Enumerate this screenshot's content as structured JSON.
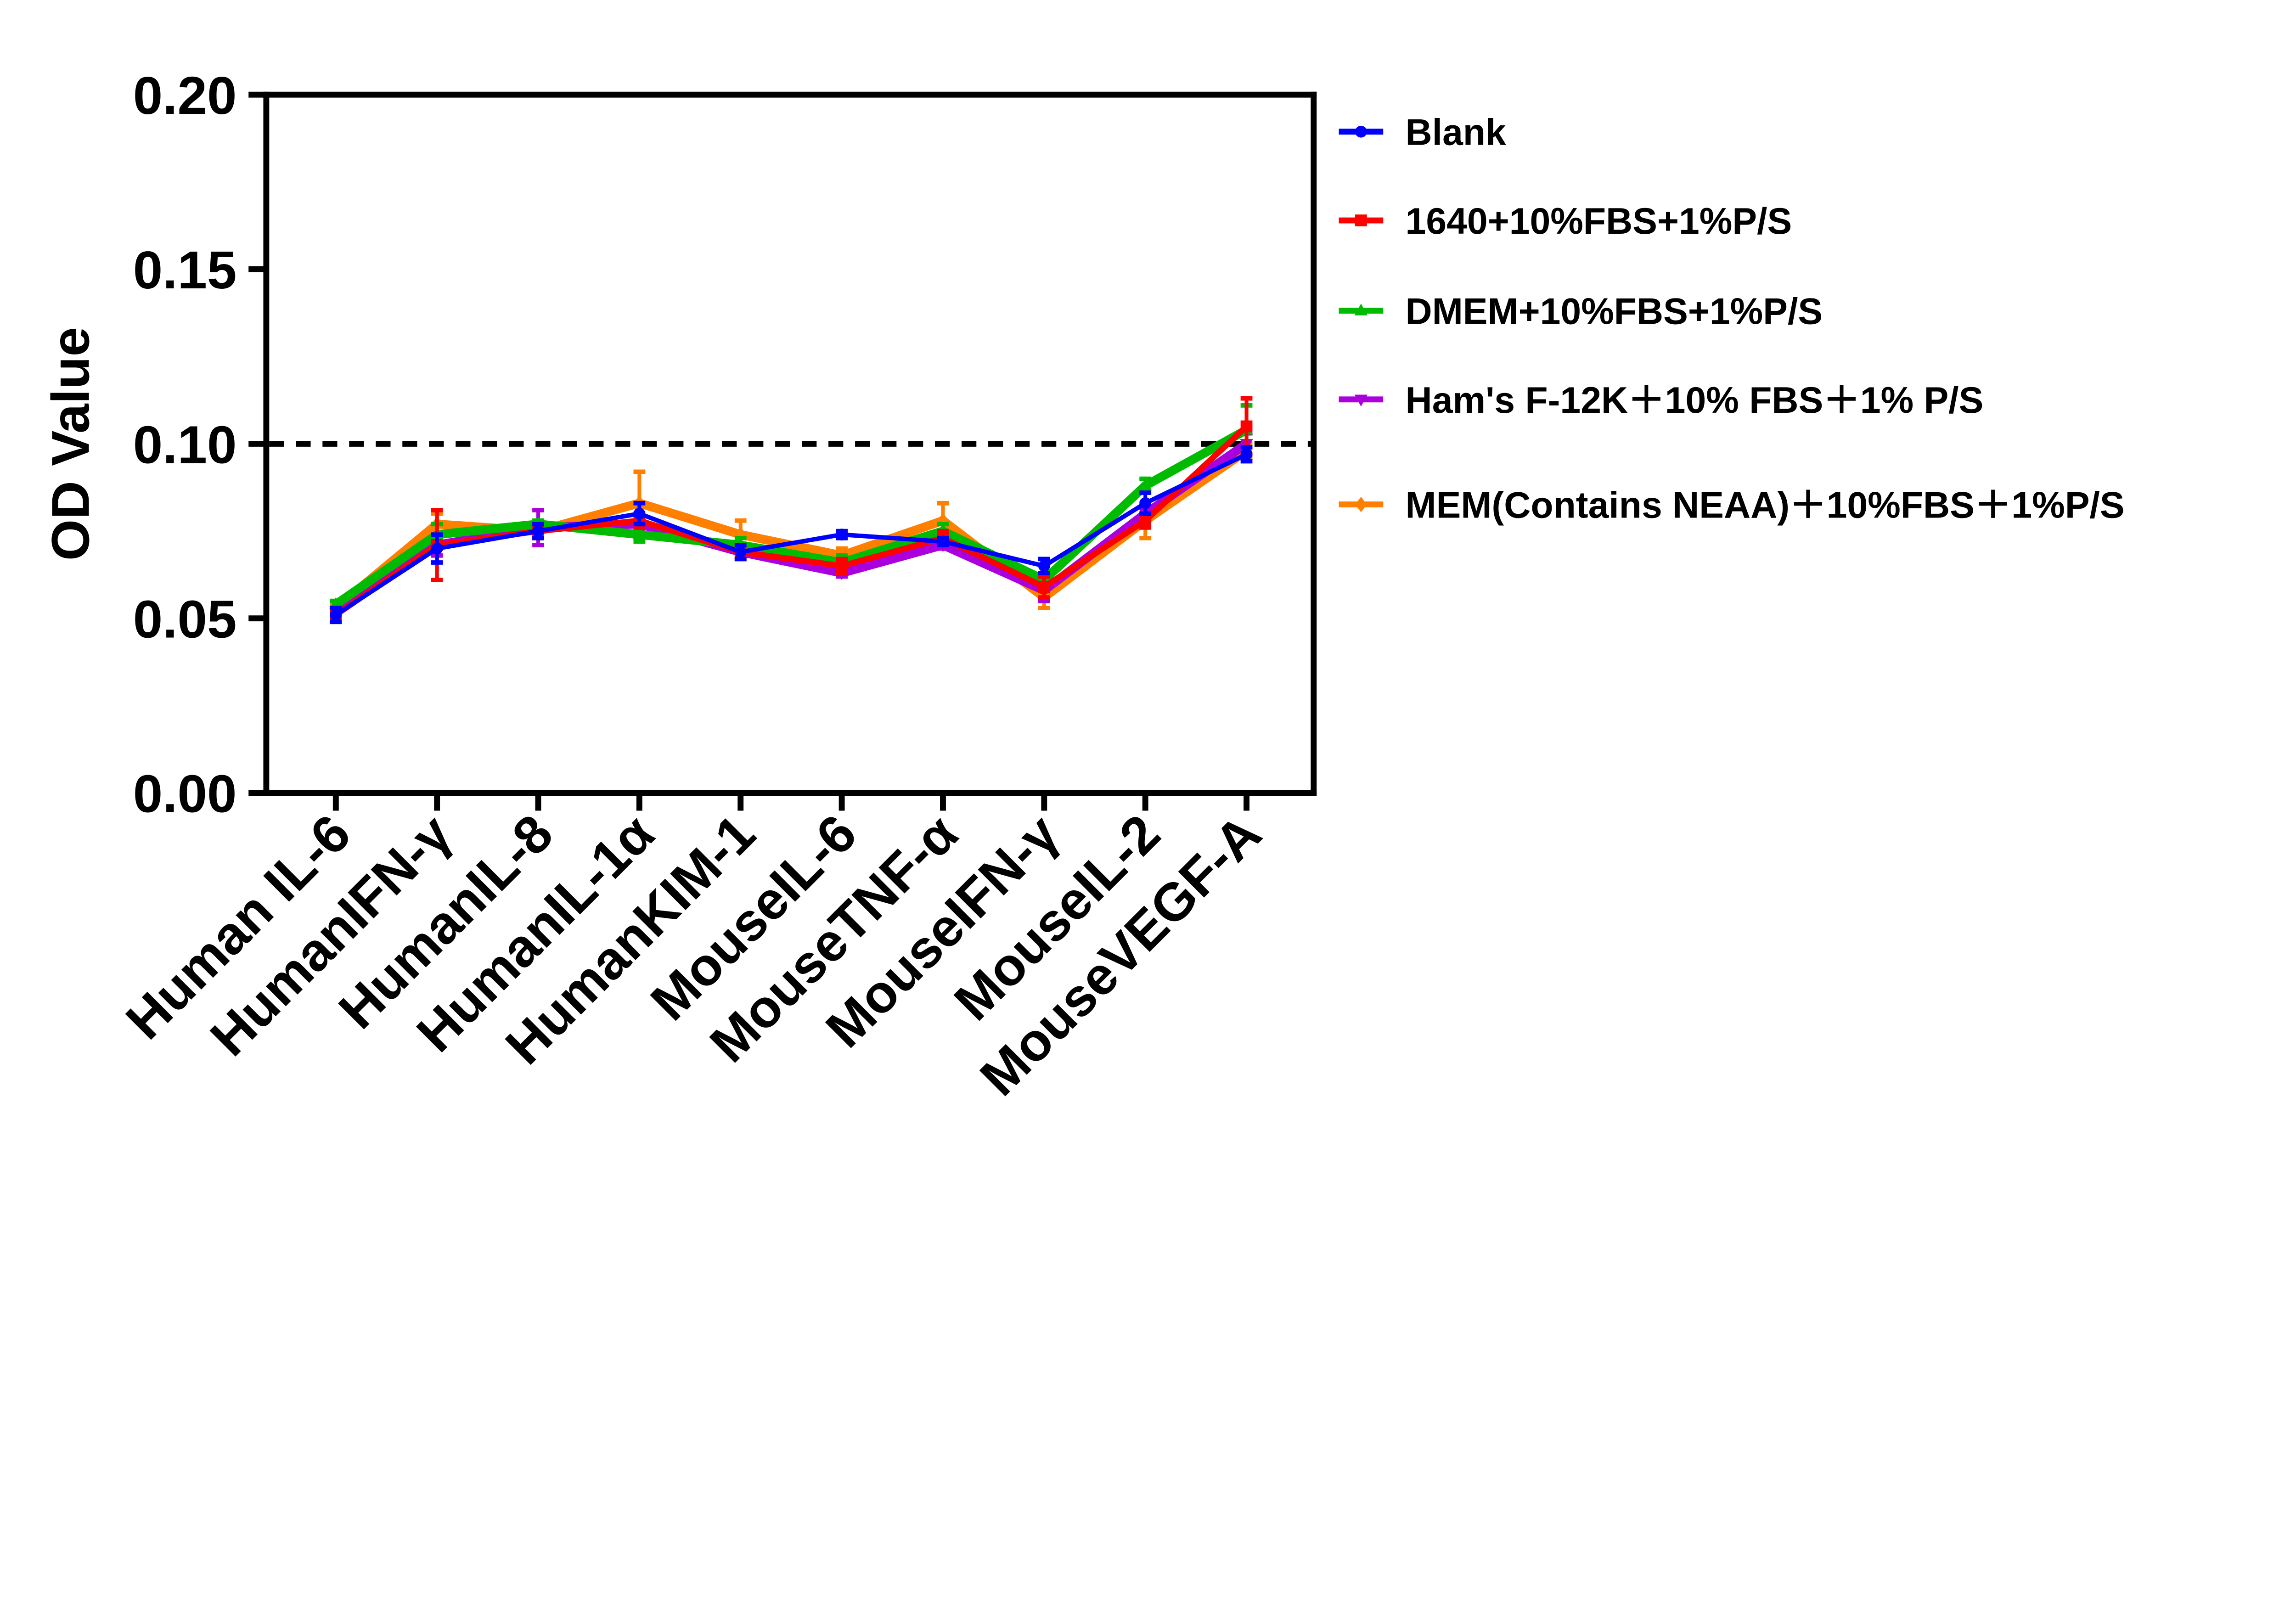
{
  "chart_data": {
    "type": "line",
    "title": "",
    "xlabel": "",
    "ylabel": "OD Value",
    "ylim": [
      0,
      0.2
    ],
    "yticks": [
      "0.00",
      "0.05",
      "0.10",
      "0.15",
      "0.20"
    ],
    "grid": false,
    "legend_position": "right",
    "reference_line": {
      "y": 0.1,
      "style": "dashed",
      "color": "#000000"
    },
    "categories": [
      "Human IL-6",
      "HumanIFN-γ",
      "HumanIL-8",
      "HumanIL-1α",
      "HumanKIM-1",
      "MouseIL-6",
      "MouseTNF-α",
      "MouseIFN-γ",
      "MouseIL-2",
      "MouseVEGF-A"
    ],
    "series": [
      {
        "name": "Blank",
        "color": "#0000FF",
        "marker": "circle",
        "values": [
          0.051,
          0.07,
          0.075,
          0.08,
          0.069,
          0.074,
          0.072,
          0.065,
          0.083,
          0.097
        ],
        "errors": [
          0.002,
          0.004,
          0.002,
          0.003,
          0.002,
          0.001,
          0.001,
          0.002,
          0.003,
          0.002
        ]
      },
      {
        "name": "1640+10%FBS+1%P/S",
        "color": "#FF0000",
        "marker": "square",
        "values": [
          0.051,
          0.071,
          0.075,
          0.078,
          0.069,
          0.065,
          0.073,
          0.059,
          0.078,
          0.105
        ],
        "errors": [
          0.002,
          0.01,
          0.002,
          0.002,
          0.002,
          0.002,
          0.002,
          0.003,
          0.002,
          0.008
        ]
      },
      {
        "name": "DMEM+10%FBS+1%P/S",
        "color": "#00BB00",
        "marker": "triangle-up",
        "values": [
          0.054,
          0.074,
          0.077,
          0.074,
          0.071,
          0.066,
          0.075,
          0.061,
          0.088,
          0.104
        ],
        "errors": [
          0.001,
          0.003,
          0.001,
          0.002,
          0.002,
          0.002,
          0.002,
          0.002,
          0.002,
          0.007
        ]
      },
      {
        "name": "Ham's F-12K＋10% FBS＋1% P/S",
        "color": "#AA00DD",
        "marker": "triangle-down",
        "values": [
          0.052,
          0.071,
          0.076,
          0.077,
          0.069,
          0.063,
          0.071,
          0.058,
          0.08,
          0.1
        ],
        "errors": [
          0.001,
          0.003,
          0.005,
          0.002,
          0.002,
          0.001,
          0.001,
          0.003,
          0.002,
          0.003
        ]
      },
      {
        "name": "MEM(Contains NEAA)＋10%FBS＋1%P/S",
        "color": "#FF8000",
        "marker": "diamond",
        "values": [
          0.053,
          0.077,
          0.075,
          0.083,
          0.074,
          0.068,
          0.078,
          0.056,
          0.078,
          0.098
        ],
        "errors": [
          0.001,
          0.003,
          0.002,
          0.009,
          0.004,
          0.002,
          0.005,
          0.003,
          0.005,
          0.002
        ]
      }
    ]
  }
}
